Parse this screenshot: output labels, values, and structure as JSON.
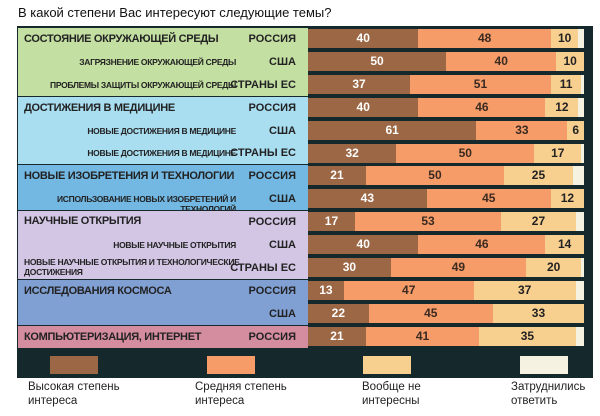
{
  "chart_data": {
    "type": "bar",
    "orientation": "horizontal-stacked",
    "title": "В какой степени Вас интересуют следующие темы?",
    "unit": "%",
    "legend": [
      "Высокая степень интереса",
      "Средняя степень интереса",
      "Вообще не интересны",
      "Затруднились ответить"
    ],
    "legend_placement": "bottom",
    "colors": [
      "#9b6744",
      "#f59c69",
      "#f7cf8f",
      "#f6f2e2"
    ],
    "groups": [
      {
        "label": "СОСТОЯНИЕ ОКРУЖАЮЩЕЙ СРЕДЫ",
        "color": "#c4dfa2",
        "rows": [
          {
            "sublabel": "",
            "country": "РОССИЯ",
            "values": [
              40,
              48,
              10
            ]
          },
          {
            "sublabel": "ЗАГРЯЗНЕНИЕ ОКРУЖАЮЩЕЙ СРЕДЫ",
            "country": "США",
            "values": [
              50,
              40,
              10
            ]
          },
          {
            "sublabel": "ПРОБЛЕМЫ ЗАЩИТЫ ОКРУЖАЮЩЕЙ СРЕДЫ",
            "country": "СТРАНЫ ЕС",
            "values": [
              37,
              51,
              11
            ]
          }
        ]
      },
      {
        "label": "ДОСТИЖЕНИЯ В МЕДИЦИНЕ",
        "color": "#a9def1",
        "rows": [
          {
            "sublabel": "",
            "country": "РОССИЯ",
            "values": [
              40,
              46,
              12
            ]
          },
          {
            "sublabel": "НОВЫЕ ДОСТИЖЕНИЯ В МЕДИЦИНЕ",
            "country": "США",
            "values": [
              61,
              33,
              6
            ]
          },
          {
            "sublabel": "НОВЫЕ ДОСТИЖЕНИЯ В МЕДИЦИНЕ",
            "country": "СТРАНЫ ЕС",
            "values": [
              32,
              50,
              17
            ]
          }
        ]
      },
      {
        "label": "НОВЫЕ ИЗОБРЕТЕНИЯ И ТЕХНОЛОГИИ",
        "color": "#72b8e3",
        "rows": [
          {
            "sublabel": "",
            "country": "РОССИЯ",
            "values": [
              21,
              50,
              25
            ]
          },
          {
            "sublabel": "ИСПОЛЬЗОВАНИЕ НОВЫХ ИЗОБРЕТЕНИЙ И ТЕХНОЛОГИЙ",
            "country": "США",
            "values": [
              43,
              45,
              12
            ]
          }
        ]
      },
      {
        "label": "НАУЧНЫЕ ОТКРЫТИЯ",
        "color": "#d3c6e5",
        "rows": [
          {
            "sublabel": "",
            "country": "РОССИЯ",
            "values": [
              17,
              53,
              27
            ]
          },
          {
            "sublabel": "НОВЫЕ НАУЧНЫЕ ОТКРЫТИЯ",
            "country": "США",
            "values": [
              40,
              46,
              14
            ]
          },
          {
            "sublabel": "НОВЫЕ НАУЧНЫЕ ОТКРЫТИЯ И ТЕХНОЛОГИЧЕСКИЕ ДОСТИЖЕНИЯ",
            "country": "СТРАНЫ ЕС",
            "values": [
              30,
              49,
              20
            ]
          }
        ]
      },
      {
        "label": "ИССЛЕДОВАНИЯ КОСМОСА",
        "color": "#80a0d4",
        "rows": [
          {
            "sublabel": "",
            "country": "РОССИЯ",
            "values": [
              13,
              47,
              37
            ]
          },
          {
            "sublabel": "",
            "country": "США",
            "values": [
              22,
              45,
              33
            ]
          }
        ]
      },
      {
        "label": "КОМПЬЮТЕРИЗАЦИЯ, ИНТЕРНЕТ",
        "color": "#d48c9f",
        "rows": [
          {
            "sublabel": "",
            "country": "РОССИЯ",
            "values": [
              21,
              41,
              35
            ]
          }
        ]
      }
    ]
  }
}
